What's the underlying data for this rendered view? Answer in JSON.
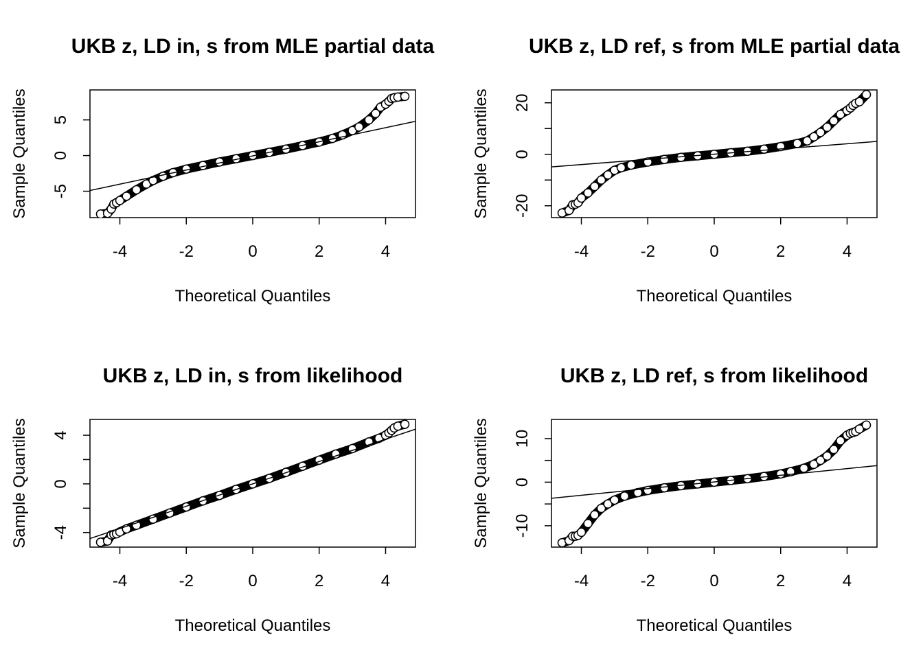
{
  "chart_data": [
    {
      "type": "scatter",
      "title": "UKB z, LD in, s from MLE partial data",
      "xlabel": "Theoretical Quantiles",
      "ylabel": "Sample Quantiles",
      "xlim": [
        -4.9,
        4.9
      ],
      "ylim": [
        -8.7,
        9.2
      ],
      "xticks": [
        -4,
        -2,
        0,
        2,
        4
      ],
      "yticks": [
        -5,
        0,
        5
      ],
      "yticks_minor": [],
      "grid": false,
      "qq_line": {
        "x": [
          -4.9,
          4.9
        ],
        "y": [
          -4.9,
          4.8
        ]
      },
      "series": [
        {
          "x": [
            -4.58,
            -4.37,
            -4.26,
            -4.18,
            -4.1,
            -4.0,
            -3.8,
            -3.5,
            -3.2,
            -3.0,
            -2.7,
            -2.4,
            -2.0,
            -1.5,
            -1.0,
            -0.5,
            0.0,
            0.5,
            1.0,
            1.5,
            2.0,
            2.4,
            2.7,
            3.0,
            3.2,
            3.5,
            3.7,
            3.85,
            4.0,
            4.1,
            4.18,
            4.26,
            4.37,
            4.58
          ],
          "y": [
            -8.2,
            -8.1,
            -7.5,
            -6.8,
            -6.6,
            -6.3,
            -5.7,
            -4.8,
            -4.0,
            -3.5,
            -2.9,
            -2.4,
            -1.9,
            -1.4,
            -0.9,
            -0.45,
            0.0,
            0.45,
            0.9,
            1.4,
            1.9,
            2.4,
            2.9,
            3.5,
            4.0,
            5.0,
            5.9,
            6.8,
            7.2,
            7.6,
            8.0,
            8.1,
            8.2,
            8.3
          ]
        }
      ]
    },
    {
      "type": "scatter",
      "title": "UKB z, LD ref, s from MLE partial data",
      "xlabel": "Theoretical Quantiles",
      "ylabel": "Sample Quantiles",
      "xlim": [
        -4.9,
        4.9
      ],
      "ylim": [
        -24.6,
        25.0
      ],
      "xticks": [
        -4,
        -2,
        0,
        2,
        4
      ],
      "yticks": [
        -20,
        0,
        20
      ],
      "yticks_minor": [
        -10,
        10
      ],
      "grid": false,
      "qq_line": {
        "x": [
          -4.9,
          4.9
        ],
        "y": [
          -4.9,
          5.0
        ]
      },
      "series": [
        {
          "x": [
            -4.58,
            -4.37,
            -4.26,
            -4.18,
            -4.1,
            -4.0,
            -3.8,
            -3.6,
            -3.4,
            -3.2,
            -3.0,
            -2.8,
            -2.5,
            -2.0,
            -1.5,
            -1.0,
            -0.5,
            0.0,
            0.5,
            1.0,
            1.5,
            2.0,
            2.5,
            2.8,
            3.0,
            3.2,
            3.4,
            3.6,
            3.8,
            4.0,
            4.1,
            4.18,
            4.26,
            4.37,
            4.58
          ],
          "y": [
            -22.8,
            -21.8,
            -19.6,
            -19.4,
            -18.8,
            -17.0,
            -15.0,
            -12.5,
            -10.0,
            -8.0,
            -6.2,
            -5.2,
            -4.2,
            -3.0,
            -2.0,
            -1.2,
            -0.6,
            0.0,
            0.6,
            1.2,
            2.0,
            3.0,
            4.2,
            5.2,
            6.8,
            8.5,
            10.5,
            13.0,
            15.5,
            17.0,
            18.0,
            19.0,
            19.8,
            20.4,
            23.2
          ]
        }
      ]
    },
    {
      "type": "scatter",
      "title": "UKB z, LD in, s from likelihood",
      "xlabel": "Theoretical Quantiles",
      "ylabel": "Sample Quantiles",
      "xlim": [
        -4.9,
        4.9
      ],
      "ylim": [
        -5.2,
        5.3
      ],
      "xticks": [
        -4,
        -2,
        0,
        2,
        4
      ],
      "yticks": [
        -4,
        0,
        4
      ],
      "yticks_minor": [
        -2,
        2
      ],
      "grid": false,
      "qq_line": {
        "x": [
          -4.9,
          4.9
        ],
        "y": [
          -4.5,
          4.5
        ]
      },
      "series": [
        {
          "x": [
            -4.58,
            -4.37,
            -4.26,
            -4.18,
            -4.1,
            -4.0,
            -3.8,
            -3.5,
            -3.0,
            -2.5,
            -2.0,
            -1.5,
            -1.0,
            -0.5,
            0.0,
            0.5,
            1.0,
            1.5,
            2.0,
            2.5,
            3.0,
            3.5,
            3.8,
            4.0,
            4.1,
            4.18,
            4.26,
            4.37,
            4.58
          ],
          "y": [
            -4.8,
            -4.7,
            -4.2,
            -4.15,
            -4.1,
            -3.95,
            -3.7,
            -3.4,
            -2.9,
            -2.4,
            -1.9,
            -1.4,
            -0.95,
            -0.45,
            0.0,
            0.45,
            0.95,
            1.45,
            1.95,
            2.45,
            2.9,
            3.45,
            3.75,
            4.0,
            4.2,
            4.4,
            4.6,
            4.75,
            4.9
          ]
        }
      ]
    },
    {
      "type": "scatter",
      "title": "UKB z, LD ref, s from likelihood",
      "xlabel": "Theoretical Quantiles",
      "ylabel": "Sample Quantiles",
      "xlim": [
        -4.9,
        4.9
      ],
      "ylim": [
        -14.9,
        14.4
      ],
      "xticks": [
        -4,
        -2,
        0,
        2,
        4
      ],
      "yticks": [
        -10,
        0,
        10
      ],
      "yticks_minor": [
        -5,
        5
      ],
      "grid": false,
      "qq_line": {
        "x": [
          -4.9,
          4.9
        ],
        "y": [
          -3.7,
          3.8
        ]
      },
      "series": [
        {
          "x": [
            -4.58,
            -4.37,
            -4.26,
            -4.18,
            -4.1,
            -4.0,
            -3.8,
            -3.6,
            -3.4,
            -3.2,
            -3.0,
            -2.7,
            -2.3,
            -2.0,
            -1.5,
            -1.0,
            -0.5,
            0.0,
            0.5,
            1.0,
            1.5,
            2.0,
            2.3,
            2.7,
            3.0,
            3.2,
            3.4,
            3.6,
            3.8,
            4.0,
            4.1,
            4.18,
            4.26,
            4.37,
            4.58
          ],
          "y": [
            -13.9,
            -13.4,
            -12.4,
            -12.4,
            -12.2,
            -11.5,
            -9.5,
            -7.5,
            -6.0,
            -5.0,
            -4.1,
            -3.2,
            -2.4,
            -1.9,
            -1.3,
            -0.8,
            -0.4,
            0.0,
            0.4,
            0.8,
            1.3,
            1.9,
            2.4,
            3.2,
            4.1,
            5.0,
            6.0,
            7.5,
            9.5,
            10.8,
            11.2,
            11.4,
            11.6,
            12.2,
            13.1
          ]
        }
      ]
    }
  ]
}
